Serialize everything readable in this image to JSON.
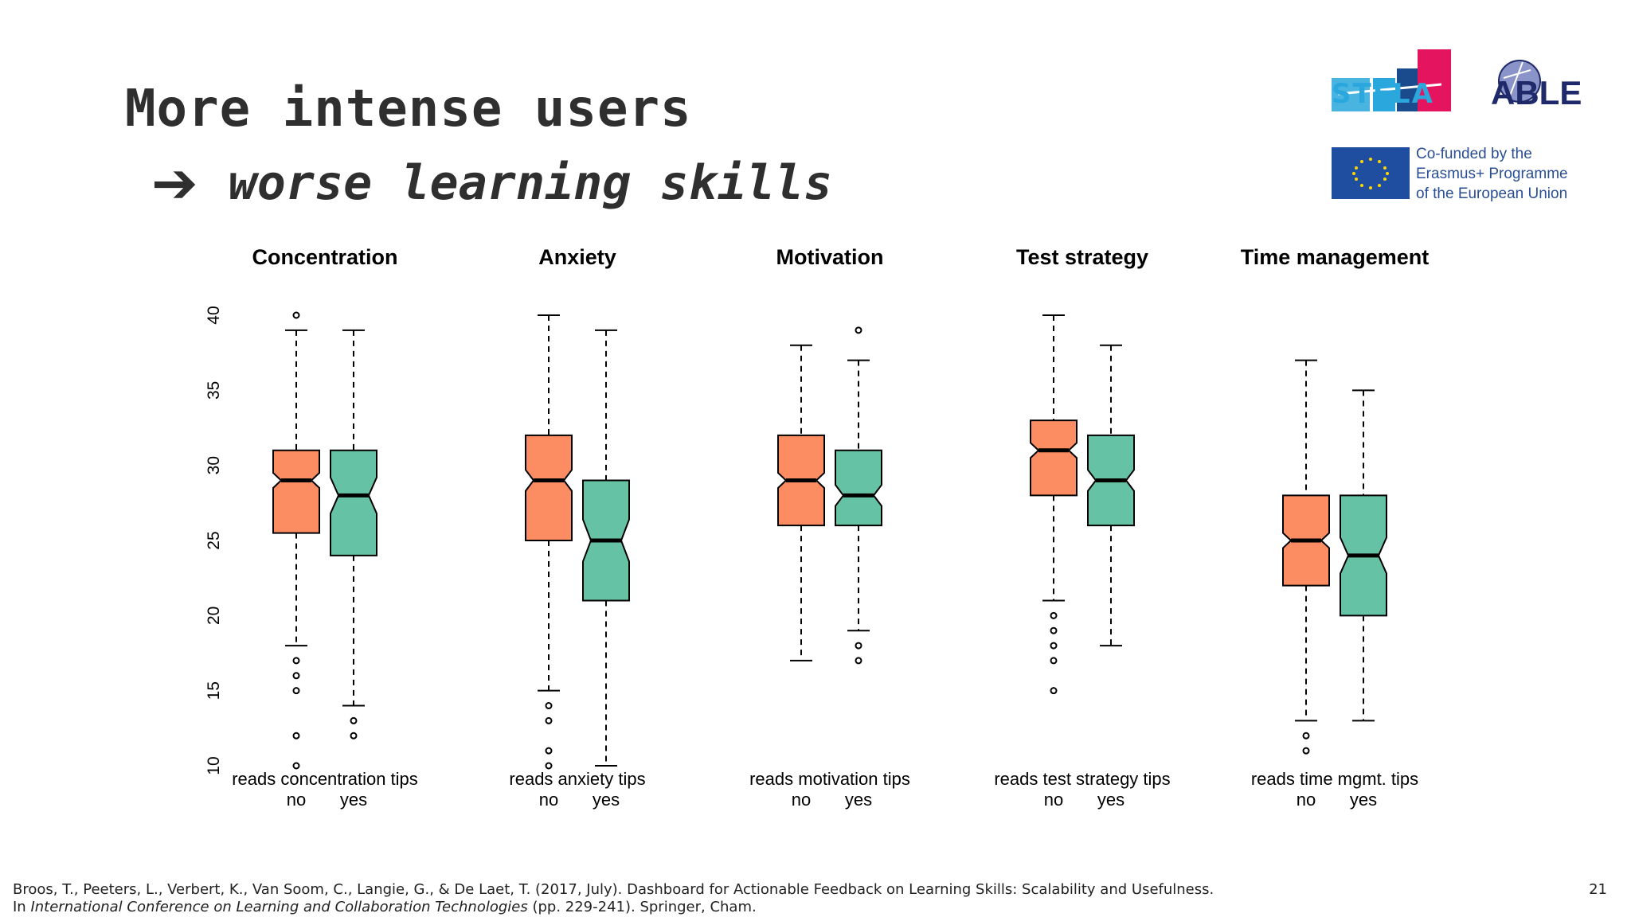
{
  "slide": {
    "title": "More intense users",
    "arrow": "🡒",
    "subtitle": "worse learning skills",
    "page_number": "21"
  },
  "logos": {
    "stela": "STELA",
    "able": "ABLE",
    "eu_lines": [
      "Co-funded by the",
      "Erasmus+ Programme",
      "of the European Union"
    ]
  },
  "citation": {
    "line1": "Broos, T., Peeters, L., Verbert, K., Van Soom, C., Langie, G., & De Laet, T. (2017, July). Dashboard for Actionable Feedback on Learning Skills: Scalability and Usefulness.",
    "line2_prefix": "In ",
    "line2_italic": "International Conference on Learning and Collaboration Technologies",
    "line2_suffix": " (pp. 229-241). Springer, Cham."
  },
  "colors": {
    "no": "#FC8D62",
    "yes": "#66C2A5",
    "stroke": "#000000"
  },
  "chart_data": {
    "type": "boxplot",
    "notched": true,
    "ylim": [
      10,
      40
    ],
    "yticks": [
      10,
      15,
      20,
      25,
      30,
      35,
      40
    ],
    "group_labels": [
      "no",
      "yes"
    ],
    "panels": [
      {
        "title": "Concentration",
        "xlabel": "reads concentration tips",
        "boxes": [
          {
            "group": "no",
            "whisker_low": 18,
            "q1": 25.5,
            "median": 29,
            "q3": 31,
            "whisker_high": 39,
            "notch": [
              28.5,
              29.5
            ],
            "outliers": [
              40,
              17,
              16,
              15,
              12,
              10
            ]
          },
          {
            "group": "yes",
            "whisker_low": 14,
            "q1": 24,
            "median": 28,
            "q3": 31,
            "whisker_high": 39,
            "notch": [
              26.8,
              29.2
            ],
            "outliers": [
              13,
              12
            ]
          }
        ]
      },
      {
        "title": "Anxiety",
        "xlabel": "reads anxiety tips",
        "boxes": [
          {
            "group": "no",
            "whisker_low": 15,
            "q1": 25,
            "median": 29,
            "q3": 32,
            "whisker_high": 40,
            "notch": [
              28.3,
              29.7
            ],
            "outliers": [
              14,
              13,
              11,
              10
            ]
          },
          {
            "group": "yes",
            "whisker_low": 10,
            "q1": 21,
            "median": 25,
            "q3": 29,
            "whisker_high": 39,
            "notch": [
              23.6,
              26.4
            ],
            "outliers": []
          }
        ]
      },
      {
        "title": "Motivation",
        "xlabel": "reads motivation tips",
        "boxes": [
          {
            "group": "no",
            "whisker_low": 17,
            "q1": 26,
            "median": 29,
            "q3": 32,
            "whisker_high": 38,
            "notch": [
              28.5,
              29.5
            ],
            "outliers": []
          },
          {
            "group": "yes",
            "whisker_low": 19,
            "q1": 26,
            "median": 28,
            "q3": 31,
            "whisker_high": 37,
            "notch": [
              27.3,
              28.7
            ],
            "outliers": [
              39,
              18,
              17
            ]
          }
        ]
      },
      {
        "title": "Test strategy",
        "xlabel": "reads test strategy tips",
        "boxes": [
          {
            "group": "no",
            "whisker_low": 21,
            "q1": 28,
            "median": 31,
            "q3": 33,
            "whisker_high": 40,
            "notch": [
              30.5,
              31.5
            ],
            "outliers": [
              20,
              19,
              18,
              17,
              15
            ]
          },
          {
            "group": "yes",
            "whisker_low": 18,
            "q1": 26,
            "median": 29,
            "q3": 32,
            "whisker_high": 38,
            "notch": [
              28.3,
              29.7
            ],
            "outliers": []
          }
        ]
      },
      {
        "title": "Time management",
        "xlabel": "reads time mgmt. tips",
        "boxes": [
          {
            "group": "no",
            "whisker_low": 13,
            "q1": 22,
            "median": 25,
            "q3": 28,
            "whisker_high": 37,
            "notch": [
              24.5,
              25.5
            ],
            "outliers": [
              12,
              11
            ]
          },
          {
            "group": "yes",
            "whisker_low": 13,
            "q1": 20,
            "median": 24,
            "q3": 28,
            "whisker_high": 35,
            "notch": [
              22.8,
              25.2
            ],
            "outliers": []
          }
        ]
      }
    ]
  }
}
